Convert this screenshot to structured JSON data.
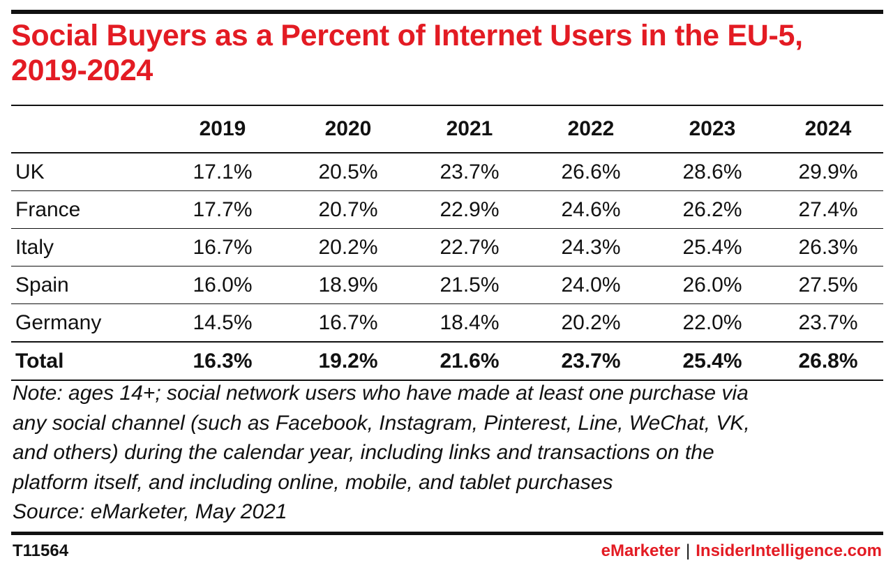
{
  "chart_data": {
    "type": "table",
    "title": "Social Buyers as a Percent of Internet Users in the EU-5, 2019-2024",
    "columns": [
      "2019",
      "2020",
      "2021",
      "2022",
      "2023",
      "2024"
    ],
    "rows": [
      {
        "label": "UK",
        "values": [
          "17.1%",
          "20.5%",
          "23.7%",
          "26.6%",
          "28.6%",
          "29.9%"
        ]
      },
      {
        "label": "France",
        "values": [
          "17.7%",
          "20.7%",
          "22.9%",
          "24.6%",
          "26.2%",
          "27.4%"
        ]
      },
      {
        "label": "Italy",
        "values": [
          "16.7%",
          "20.2%",
          "22.7%",
          "24.3%",
          "25.4%",
          "26.3%"
        ]
      },
      {
        "label": "Spain",
        "values": [
          "16.0%",
          "18.9%",
          "21.5%",
          "24.0%",
          "26.0%",
          "27.5%"
        ]
      },
      {
        "label": "Germany",
        "values": [
          "14.5%",
          "16.7%",
          "18.4%",
          "20.2%",
          "22.0%",
          "23.7%"
        ]
      },
      {
        "label": "Total",
        "values": [
          "16.3%",
          "19.2%",
          "21.6%",
          "23.7%",
          "25.4%",
          "26.8%"
        ]
      }
    ]
  },
  "note_lines": [
    "Note: ages 14+; social network users who have made at least one purchase via",
    "any social channel (such as Facebook, Instagram, Pinterest, Line, WeChat, VK,",
    "and others) during the calendar year, including links and transactions on the",
    "platform itself, and including online, mobile, and tablet purchases"
  ],
  "source": "Source: eMarketer, May 2021",
  "footer": {
    "id": "T11564",
    "brand_left": "eMarketer",
    "separator": "|",
    "brand_right": "InsiderIntelligence.com"
  },
  "colors": {
    "title": "#e31b23",
    "rules": "#111111",
    "brand": "#e31b23"
  }
}
